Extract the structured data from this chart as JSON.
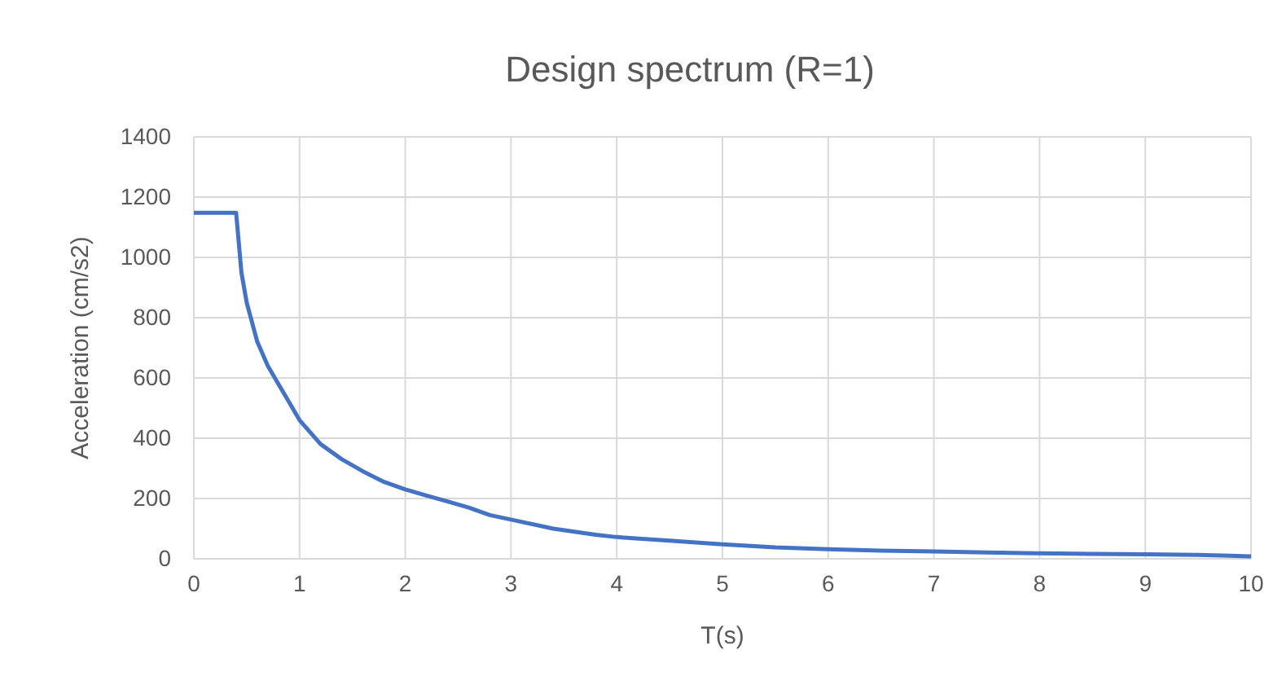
{
  "chart_data": {
    "type": "line",
    "title": "Design spectrum (R=1)",
    "xlabel": "T(s)",
    "ylabel": "Acceleration (cm/s2)",
    "x": [
      0,
      0.4,
      0.45,
      0.5,
      0.6,
      0.7,
      0.8,
      0.9,
      1.0,
      1.2,
      1.4,
      1.6,
      1.8,
      2.0,
      2.2,
      2.4,
      2.6,
      2.8,
      3.0,
      3.4,
      3.8,
      4.0,
      4.5,
      5.0,
      5.5,
      6.0,
      6.5,
      7.0,
      7.5,
      8.0,
      8.5,
      9.0,
      9.5,
      9.8,
      10
    ],
    "series": [
      {
        "color": "#4472c4",
        "values": [
          1148,
          1148,
          950,
          850,
          720,
          640,
          580,
          520,
          460,
          380,
          330,
          290,
          255,
          230,
          210,
          190,
          170,
          145,
          130,
          100,
          80,
          72,
          60,
          48,
          38,
          32,
          27,
          24,
          21,
          18,
          16,
          15,
          13,
          10,
          8
        ]
      }
    ],
    "xlim": [
      0,
      10
    ],
    "xticks": [
      0,
      1,
      2,
      3,
      4,
      5,
      6,
      7,
      8,
      9,
      10
    ],
    "ylim": [
      0,
      1400
    ],
    "yticks": [
      0,
      200,
      400,
      600,
      800,
      1000,
      1200,
      1400
    ],
    "grid": true,
    "line_style": "solid",
    "marker": "none"
  }
}
